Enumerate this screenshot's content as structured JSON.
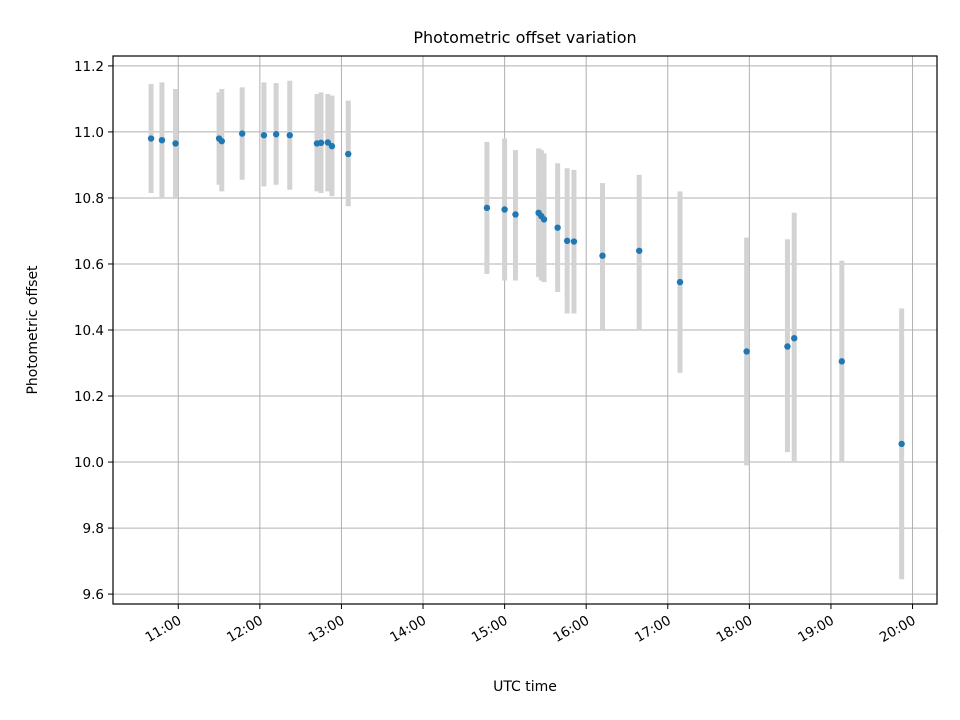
{
  "chart_data": {
    "type": "scatter",
    "title": "Photometric offset variation",
    "xlabel": "UTC time",
    "ylabel": "Photometric offset",
    "x_unit": "UTC hours",
    "xlim": [
      "10:12",
      "20:18"
    ],
    "ylim": [
      9.57,
      11.23
    ],
    "x_ticks": [
      "11:00",
      "12:00",
      "13:00",
      "14:00",
      "15:00",
      "16:00",
      "17:00",
      "18:00",
      "19:00",
      "20:00"
    ],
    "y_ticks": [
      9.6,
      9.8,
      10.0,
      10.2,
      10.4,
      10.6,
      10.8,
      11.0,
      11.2
    ],
    "grid": true,
    "legend": "none",
    "marker_color": "#1f77b4",
    "errorbar_color": "#d3d3d3",
    "points": [
      {
        "t": "10:40",
        "y": 10.98,
        "lo": 10.815,
        "hi": 11.145
      },
      {
        "t": "10:48",
        "y": 10.975,
        "lo": 10.8,
        "hi": 11.15
      },
      {
        "t": "10:58",
        "y": 10.965,
        "lo": 10.8,
        "hi": 11.13
      },
      {
        "t": "11:30",
        "y": 10.98,
        "lo": 10.84,
        "hi": 11.12
      },
      {
        "t": "11:32",
        "y": 10.972,
        "lo": 10.82,
        "hi": 11.13
      },
      {
        "t": "11:47",
        "y": 10.995,
        "lo": 10.855,
        "hi": 11.135
      },
      {
        "t": "12:03",
        "y": 10.99,
        "lo": 10.835,
        "hi": 11.15
      },
      {
        "t": "12:12",
        "y": 10.993,
        "lo": 10.84,
        "hi": 11.148
      },
      {
        "t": "12:22",
        "y": 10.99,
        "lo": 10.825,
        "hi": 11.155
      },
      {
        "t": "12:42",
        "y": 10.965,
        "lo": 10.82,
        "hi": 11.115
      },
      {
        "t": "12:45",
        "y": 10.967,
        "lo": 10.815,
        "hi": 11.12
      },
      {
        "t": "12:50",
        "y": 10.968,
        "lo": 10.82,
        "hi": 11.115
      },
      {
        "t": "12:53",
        "y": 10.957,
        "lo": 10.805,
        "hi": 11.11
      },
      {
        "t": "13:05",
        "y": 10.933,
        "lo": 10.775,
        "hi": 11.095
      },
      {
        "t": "14:47",
        "y": 10.77,
        "lo": 10.57,
        "hi": 10.97
      },
      {
        "t": "15:00",
        "y": 10.765,
        "lo": 10.55,
        "hi": 10.98
      },
      {
        "t": "15:08",
        "y": 10.75,
        "lo": 10.55,
        "hi": 10.945
      },
      {
        "t": "15:25",
        "y": 10.755,
        "lo": 10.56,
        "hi": 10.95
      },
      {
        "t": "15:27",
        "y": 10.745,
        "lo": 10.55,
        "hi": 10.945
      },
      {
        "t": "15:29",
        "y": 10.735,
        "lo": 10.545,
        "hi": 10.935
      },
      {
        "t": "15:39",
        "y": 10.71,
        "lo": 10.515,
        "hi": 10.905
      },
      {
        "t": "15:46",
        "y": 10.67,
        "lo": 10.45,
        "hi": 10.89
      },
      {
        "t": "15:51",
        "y": 10.668,
        "lo": 10.45,
        "hi": 10.885
      },
      {
        "t": "16:12",
        "y": 10.625,
        "lo": 10.4,
        "hi": 10.845
      },
      {
        "t": "16:39",
        "y": 10.64,
        "lo": 10.4,
        "hi": 10.87
      },
      {
        "t": "17:09",
        "y": 10.545,
        "lo": 10.27,
        "hi": 10.82
      },
      {
        "t": "17:58",
        "y": 10.335,
        "lo": 9.99,
        "hi": 10.68
      },
      {
        "t": "18:28",
        "y": 10.35,
        "lo": 10.03,
        "hi": 10.675
      },
      {
        "t": "18:33",
        "y": 10.375,
        "lo": 10.0,
        "hi": 10.755
      },
      {
        "t": "19:08",
        "y": 10.305,
        "lo": 10.0,
        "hi": 10.61
      },
      {
        "t": "19:52",
        "y": 10.055,
        "lo": 9.645,
        "hi": 10.465
      }
    ]
  }
}
